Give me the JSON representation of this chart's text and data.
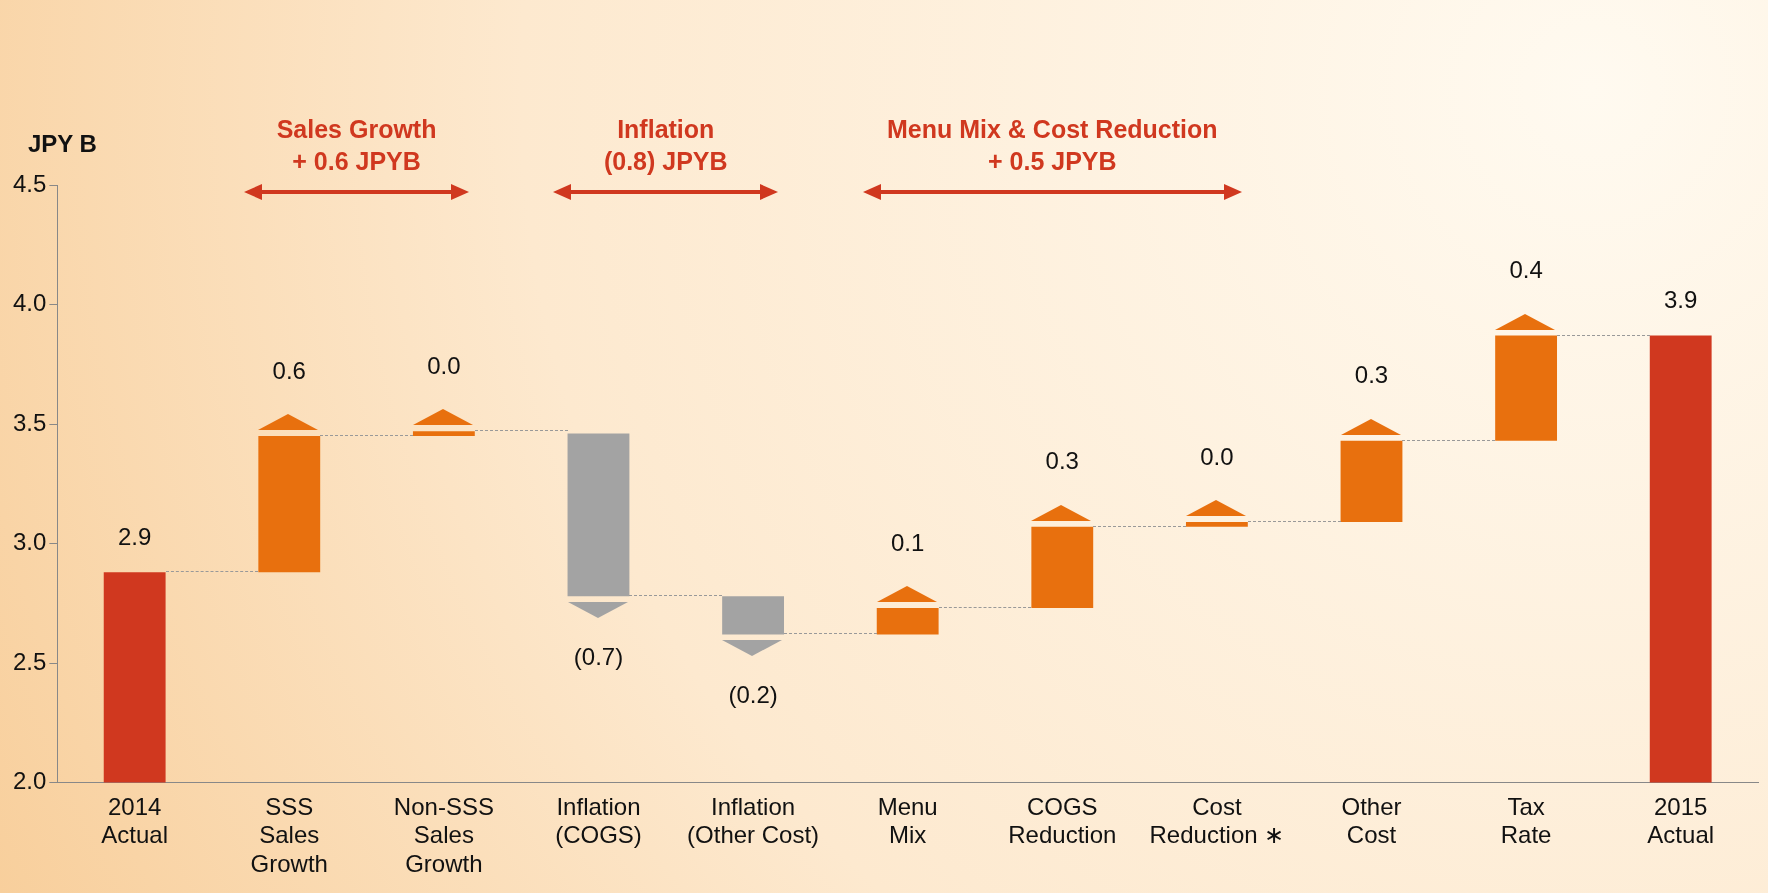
{
  "chart_data": {
    "type": "bar",
    "ylabel": "JPY B",
    "categories": [
      "2014\nActual",
      "SSS\nSales\nGrowth",
      "Non-SSS\nSales\nGrowth",
      "Inflation\n(COGS)",
      "Inflation\n(Other Cost)",
      "Menu\nMix",
      "COGS\nReduction",
      "Cost\nReduction ∗",
      "Other\nCost",
      "Tax\nRate",
      "2015\nActual"
    ],
    "base": [
      0,
      2.88,
      3.45,
      3.46,
      2.78,
      2.62,
      2.73,
      3.07,
      3.09,
      3.43,
      0
    ],
    "values": [
      2.88,
      0.57,
      0.02,
      -0.68,
      -0.16,
      0.11,
      0.34,
      0.02,
      0.34,
      0.44,
      3.87
    ],
    "value_labels": [
      "2.9",
      "0.6",
      "0.0",
      "(0.7)",
      "(0.2)",
      "0.1",
      "0.3",
      "0.0",
      "0.3",
      "0.4",
      "3.9"
    ],
    "colors": [
      "#d0381f",
      "#e8700e",
      "#e8700e",
      "#a3a3a3",
      "#a3a3a3",
      "#e8700e",
      "#e8700e",
      "#e8700e",
      "#e8700e",
      "#e8700e",
      "#d0381f"
    ],
    "ylim": [
      2.0,
      4.5
    ],
    "yticks": [
      {
        "value": 2.0,
        "label": "2.0"
      },
      {
        "value": 2.5,
        "label": "2.5"
      },
      {
        "value": 3.0,
        "label": "3.0"
      },
      {
        "value": 3.5,
        "label": "3.5"
      },
      {
        "value": 4.0,
        "label": "4.0"
      },
      {
        "value": 4.5,
        "label": "4.5"
      }
    ],
    "grid": false,
    "legend": false,
    "annotations": [
      "Sales Growth\n+ 0.6 JPYB",
      "Inflation\n(0.8) JPYB",
      "Menu Mix & Cost Reduction\n+ 0.5 JPYB"
    ]
  }
}
